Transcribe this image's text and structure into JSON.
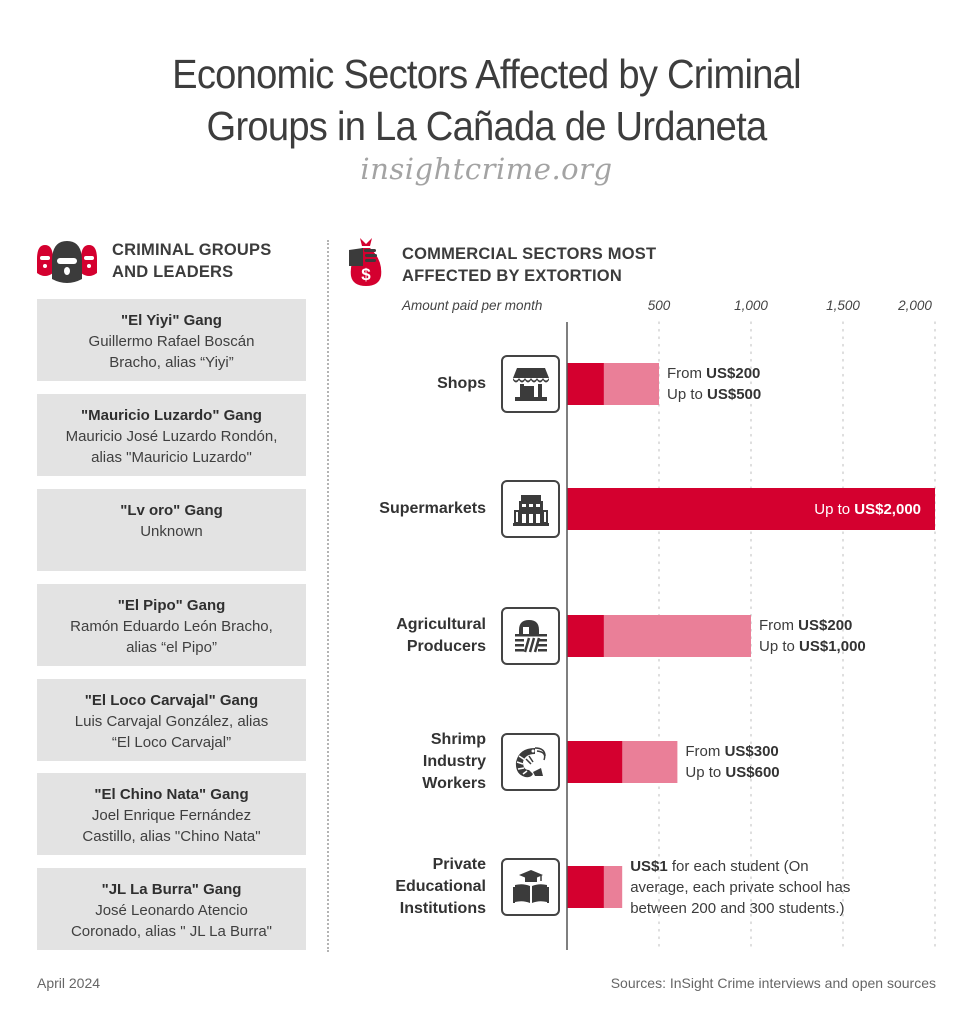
{
  "title_line1": "Economic Sectors Affected by Criminal",
  "title_line2": "Groups in La Cañada de Urdaneta",
  "site": "insightcrime.org",
  "left_section": {
    "heading_line1": "CRIMINAL GROUPS",
    "heading_line2": "AND LEADERS",
    "icon": "balaclava-masks-icon",
    "groups": [
      {
        "name": "\"El Yiyi\" Gang",
        "line1": "Guillermo Rafael Boscán",
        "line2": "Bracho, alias “Yiyi”"
      },
      {
        "name": "\"Mauricio Luzardo\" Gang",
        "line1": "Mauricio José Luzardo Rondón,",
        "line2": "alias \"Mauricio Luzardo\""
      },
      {
        "name": "\"Lv oro\" Gang",
        "line1": "Unknown",
        "line2": ""
      },
      {
        "name": "\"El Pipo\" Gang",
        "line1": "Ramón Eduardo León Bracho,",
        "line2": "alias “el Pipo”"
      },
      {
        "name": "\"El Loco Carvajal\" Gang",
        "line1": "Luis Carvajal González, alias",
        "line2": "“El Loco Carvajal”"
      },
      {
        "name": "\"El Chino Nata\" Gang",
        "line1": "Joel Enrique Fernández",
        "line2": "Castillo, alias \"Chino Nata\""
      },
      {
        "name": "\"JL La Burra\" Gang",
        "line1": "José Leonardo Atencio",
        "line2": "Coronado, alias \" JL La Burra\""
      }
    ]
  },
  "right_section": {
    "heading_line1": "COMMERCIAL SECTORS MOST",
    "heading_line2": "AFFECTED BY EXTORTION",
    "icon": "money-bag-hand-icon"
  },
  "colors": {
    "min_bar": "#d4002f",
    "max_bar": "#ea7f98",
    "text": "#3c3c3c",
    "card_bg": "#e3e3e3"
  },
  "chart_data": {
    "type": "bar",
    "orientation": "horizontal",
    "title": "Commercial Sectors Most Affected by Extortion",
    "xlabel": "Amount paid per month",
    "x_unit": "US$",
    "xlim": [
      0,
      2000
    ],
    "x_ticks": [
      500,
      1000,
      1500,
      2000
    ],
    "x_tick_labels": [
      "500",
      "1,000",
      "1,500",
      "2,000"
    ],
    "grid": true,
    "categories": [
      "Shops",
      "Supermarkets",
      "Agricultural Producers",
      "Shrimp Industry Workers",
      "Private Educational Institutions"
    ],
    "category_lines": [
      [
        "Shops"
      ],
      [
        "Supermarkets"
      ],
      [
        "Agricultural",
        "Producers"
      ],
      [
        "Shrimp",
        "Industry",
        "Workers"
      ],
      [
        "Private",
        "Educational",
        "Institutions"
      ]
    ],
    "category_icons": [
      "storefront-icon",
      "supermarket-building-icon",
      "farm-field-icon",
      "shrimp-icon",
      "graduation-book-icon"
    ],
    "series": [
      {
        "name": "From (minimum)",
        "values": [
          200,
          null,
          200,
          300,
          200
        ]
      },
      {
        "name": "Up to (maximum)",
        "values": [
          500,
          2000,
          1000,
          600,
          300
        ]
      }
    ],
    "annotations": [
      {
        "line1_prefix": "From ",
        "line1_value": "US$200",
        "line2_prefix": "Up to ",
        "line2_value": "US$500"
      },
      {
        "inside": true,
        "line1_prefix": "Up to ",
        "line1_value": "US$2,000"
      },
      {
        "line1_prefix": "From ",
        "line1_value": "US$200",
        "line2_prefix": "Up to ",
        "line2_value": "US$1,000"
      },
      {
        "line1_prefix": "From ",
        "line1_value": "US$300",
        "line2_prefix": "Up to ",
        "line2_value": "US$600"
      },
      {
        "line1_value": "US$1",
        "line1_suffix": " for each student (On",
        "line2_prefix": "average, each private school has",
        "line3": "between 200 and 300 students.)"
      }
    ]
  },
  "footer": {
    "date": "April 2024",
    "sources": "Sources: InSight Crime interviews and open sources"
  }
}
